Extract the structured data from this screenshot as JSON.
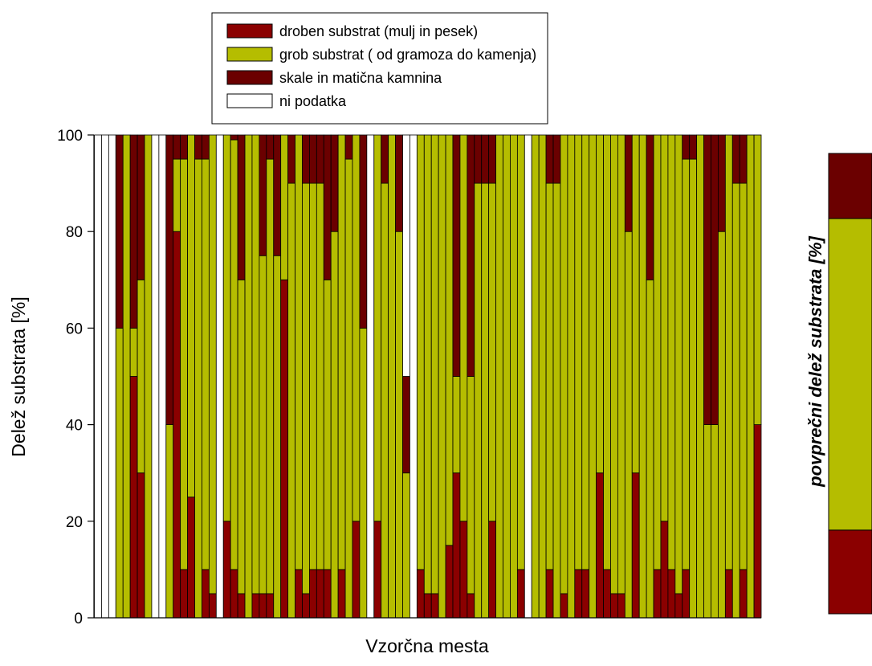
{
  "chart_data": [
    {
      "type": "bar",
      "stacked": true,
      "xlabel": "Vzorčna mesta",
      "ylabel": "Delež  substrata [%]",
      "ylim": [
        0,
        100
      ],
      "yticks": [
        "0",
        "20",
        "40",
        "60",
        "80",
        "100"
      ],
      "legend": {
        "position": "top-center",
        "entries": [
          {
            "label": "droben substrat (mulj in pesek)",
            "color": "#8b0000"
          },
          {
            "label": "grob substrat ( od gramoza do kamenja)",
            "color": "#b5bd00"
          },
          {
            "label": "skale in matična kamnina",
            "color": "#6b0000"
          },
          {
            "label": "ni podatka",
            "color": "#ffffff"
          }
        ]
      },
      "series_names": [
        "droben substrat (mulj in pesek)",
        "grob substrat ( od gramoza do kamenja)",
        "skale in matična kamnina"
      ],
      "segments": [
        [
          0,
          0,
          0
        ],
        [
          0,
          0,
          0
        ],
        [
          0,
          0,
          0
        ],
        [
          0,
          60,
          40
        ],
        [
          0,
          100,
          0
        ],
        [
          50,
          10,
          40
        ],
        [
          30,
          40,
          30
        ],
        [
          0,
          100,
          0
        ],
        [
          0,
          0,
          0
        ],
        [
          0,
          0,
          0
        ],
        [
          0,
          40,
          60
        ],
        [
          80,
          15,
          5
        ],
        [
          10,
          85,
          5
        ],
        [
          25,
          75,
          0
        ],
        [
          0,
          95,
          5
        ],
        [
          10,
          85,
          5
        ],
        [
          5,
          95,
          0
        ],
        [
          0,
          0,
          0
        ],
        [
          20,
          80,
          0
        ],
        [
          10,
          89,
          1
        ],
        [
          5,
          65,
          30
        ],
        [
          0,
          100,
          0
        ],
        [
          5,
          95,
          0
        ],
        [
          5,
          70,
          25
        ],
        [
          5,
          90,
          5
        ],
        [
          0,
          75,
          25
        ],
        [
          70,
          30,
          0
        ],
        [
          0,
          90,
          10
        ],
        [
          10,
          90,
          0
        ],
        [
          5,
          85,
          10
        ],
        [
          10,
          80,
          10
        ],
        [
          10,
          80,
          10
        ],
        [
          10,
          60,
          30
        ],
        [
          0,
          80,
          20
        ],
        [
          10,
          90,
          0
        ],
        [
          0,
          95,
          5
        ],
        [
          20,
          80,
          0
        ],
        [
          0,
          60,
          40
        ],
        [
          0,
          0,
          0
        ],
        [
          20,
          80,
          0
        ],
        [
          0,
          90,
          10
        ],
        [
          0,
          100,
          0
        ],
        [
          0,
          80,
          20
        ],
        [
          0,
          30,
          20
        ],
        [
          0,
          0,
          0
        ],
        [
          10,
          90,
          0
        ],
        [
          5,
          95,
          0
        ],
        [
          5,
          95,
          0
        ],
        [
          0,
          100,
          0
        ],
        [
          15,
          85,
          0
        ],
        [
          30,
          20,
          50
        ],
        [
          20,
          80,
          0
        ],
        [
          5,
          45,
          50
        ],
        [
          0,
          90,
          10
        ],
        [
          0,
          90,
          10
        ],
        [
          20,
          70,
          10
        ],
        [
          0,
          100,
          0
        ],
        [
          0,
          100,
          0
        ],
        [
          0,
          100,
          0
        ],
        [
          10,
          90,
          0
        ],
        [
          0,
          0,
          0
        ],
        [
          0,
          100,
          0
        ],
        [
          0,
          100,
          0
        ],
        [
          10,
          80,
          10
        ],
        [
          0,
          90,
          10
        ],
        [
          5,
          95,
          0
        ],
        [
          0,
          100,
          0
        ],
        [
          10,
          90,
          0
        ],
        [
          10,
          90,
          0
        ],
        [
          0,
          100,
          0
        ],
        [
          30,
          70,
          0
        ],
        [
          10,
          90,
          0
        ],
        [
          5,
          95,
          0
        ],
        [
          5,
          95,
          0
        ],
        [
          0,
          80,
          20
        ],
        [
          30,
          70,
          0
        ],
        [
          0,
          100,
          0
        ],
        [
          0,
          70,
          30
        ],
        [
          10,
          90,
          0
        ],
        [
          20,
          80,
          0
        ],
        [
          10,
          90,
          0
        ],
        [
          5,
          95,
          0
        ],
        [
          10,
          85,
          5
        ],
        [
          0,
          95,
          5
        ],
        [
          0,
          100,
          0
        ],
        [
          0,
          40,
          60
        ],
        [
          0,
          40,
          60
        ],
        [
          0,
          80,
          20
        ],
        [
          10,
          90,
          0
        ],
        [
          0,
          90,
          10
        ],
        [
          10,
          80,
          10
        ],
        [
          0,
          100,
          0
        ],
        [
          40,
          60,
          0
        ]
      ]
    },
    {
      "type": "bar",
      "stacked": true,
      "title": "povprečni delež substrata [%]",
      "series_names": [
        "droben substrat (mulj in pesek)",
        "grob substrat ( od gramoza do kamenja)",
        "skale in matična kamnina"
      ],
      "values": [
        18,
        67,
        14
      ]
    }
  ],
  "colors": {
    "fine": "#8b0000",
    "coarse": "#b5bd00",
    "rock": "#6b0000",
    "nodata": "#ffffff"
  }
}
